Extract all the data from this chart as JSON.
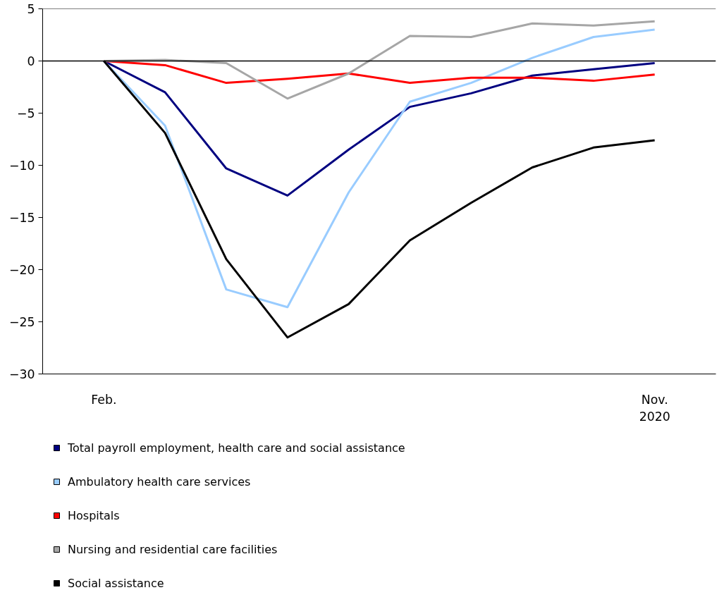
{
  "chart_data": {
    "type": "line",
    "categories": [
      "Feb.",
      null,
      null,
      null,
      null,
      null,
      null,
      null,
      null,
      "Nov.\n2020"
    ],
    "series": [
      {
        "name": "Total payroll employment, health care and social assistance",
        "color": "#000080",
        "values": [
          0,
          -3.0,
          -10.3,
          -12.9,
          -8.5,
          -4.4,
          -3.1,
          -1.4,
          -0.8,
          -0.2
        ]
      },
      {
        "name": "Ambulatory health care services",
        "color": "#99ccff",
        "values": [
          0,
          -6.2,
          -21.9,
          -23.6,
          -12.6,
          -3.9,
          -2.1,
          0.3,
          2.3,
          3.0
        ]
      },
      {
        "name": "Hospitals",
        "color": "#ff0000",
        "values": [
          0,
          -0.4,
          -2.1,
          -1.7,
          -1.2,
          -2.1,
          -1.6,
          -1.6,
          -1.9,
          -1.3
        ]
      },
      {
        "name": "Nursing and residential care facilities",
        "color": "#a6a6a6",
        "values": [
          0,
          0.1,
          -0.2,
          -3.6,
          -1.2,
          2.4,
          2.3,
          3.6,
          3.4,
          3.8
        ]
      },
      {
        "name": "Social assistance",
        "color": "#000000",
        "values": [
          0,
          -6.9,
          -19.0,
          -26.5,
          -23.3,
          -17.2,
          -13.6,
          -10.2,
          -8.3,
          -7.6
        ]
      }
    ],
    "ylim": [
      -30,
      5
    ],
    "yticks": [
      -30,
      -25,
      -20,
      -15,
      -10,
      -5,
      0,
      5
    ],
    "ref_lines": [
      {
        "axis": "y",
        "value": 0,
        "label": null,
        "color": "#000000"
      }
    ],
    "grid": false,
    "legend": "bottom",
    "marker": "none",
    "line_style": "solid"
  }
}
